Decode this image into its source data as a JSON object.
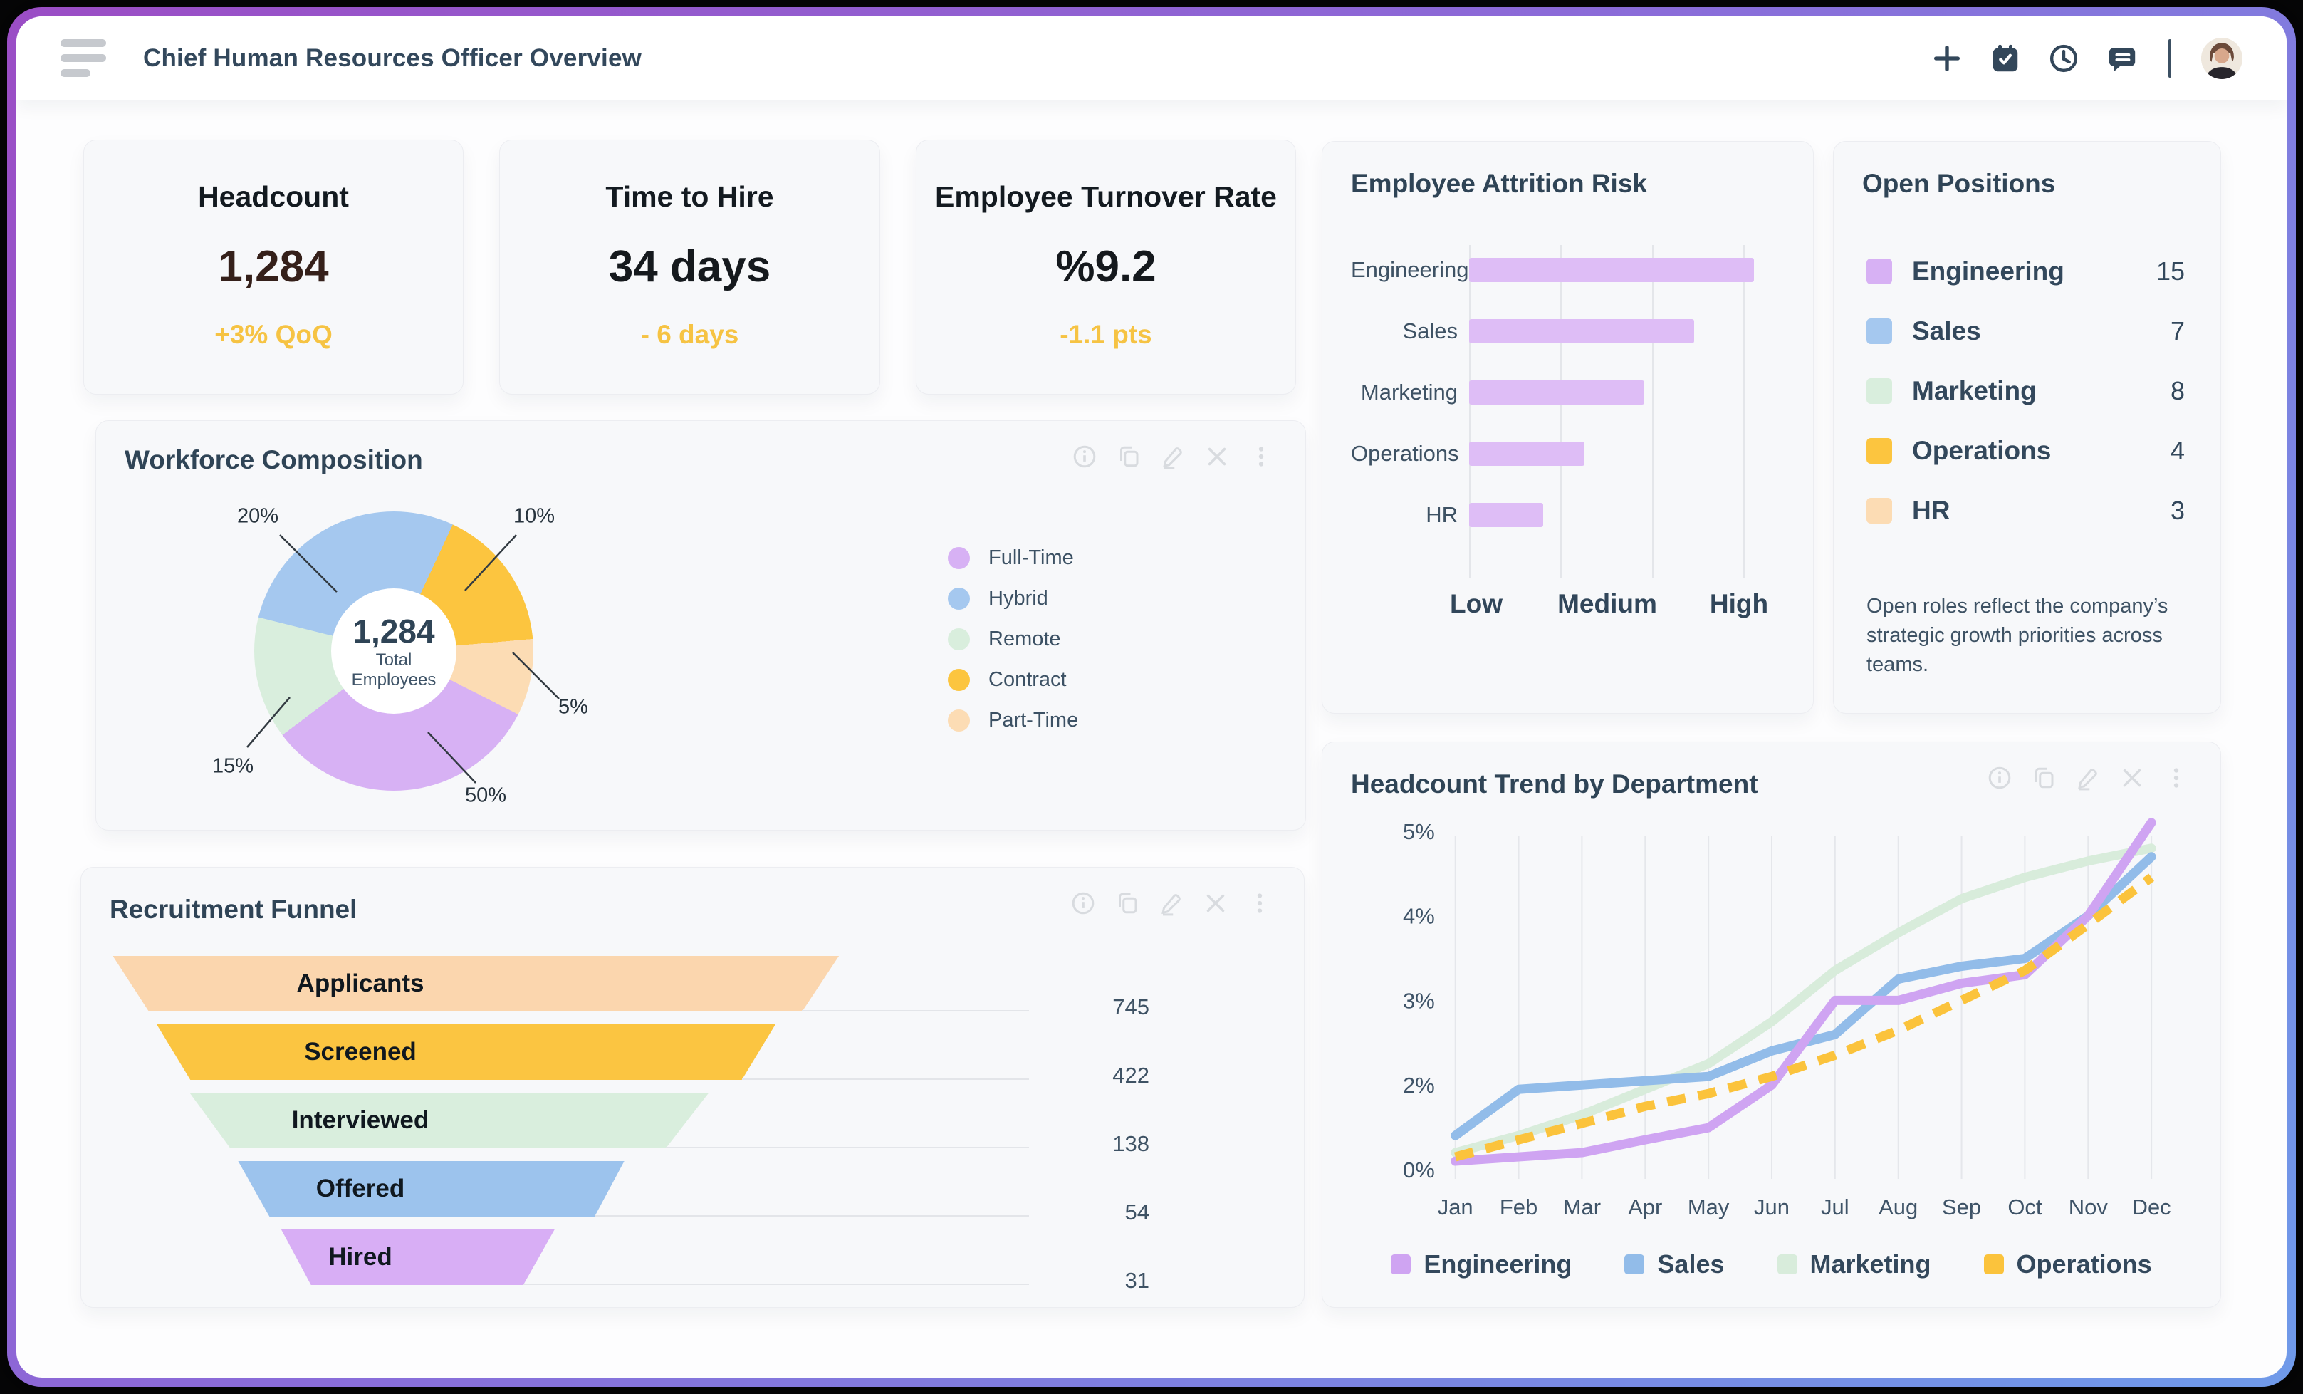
{
  "app": {
    "title": "Chief Human Resources Officer Overview",
    "header_icons": [
      "add",
      "calendar-check",
      "clock",
      "chat"
    ]
  },
  "kpis": [
    {
      "title": "Headcount",
      "value": "1,284",
      "delta": "+3% QoQ",
      "value_color": "#35201a"
    },
    {
      "title": "Time to Hire",
      "value": "34 days",
      "delta": "- 6 days",
      "value_color": "#15191d"
    },
    {
      "title": "Employee Turnover Rate",
      "value": "%9.2",
      "delta": "-1.1 pts",
      "value_color": "#15191d"
    }
  ],
  "open_positions": {
    "title": "Open Positions",
    "items": [
      {
        "label": "Engineering",
        "count": 15,
        "color": "#d7b1f4"
      },
      {
        "label": "Sales",
        "count": 7,
        "color": "#a5c8ef"
      },
      {
        "label": "Marketing",
        "count": 8,
        "color": "#d9eedd"
      },
      {
        "label": "Operations",
        "count": 4,
        "color": "#fcc53f"
      },
      {
        "label": "HR",
        "count": 3,
        "color": "#fcdcb4"
      }
    ],
    "note": "Open roles reflect the company’s strategic growth priorities across teams."
  },
  "chart_data": [
    {
      "id": "workforce_composition",
      "type": "pie",
      "title": "Workforce Composition",
      "labels": [
        "Full-Time",
        "Hybrid",
        "Remote",
        "Contract",
        "Part-Time"
      ],
      "values": [
        50,
        20,
        15,
        10,
        5
      ],
      "value_labels": [
        "50%",
        "20%",
        "15%",
        "10%",
        "5%"
      ],
      "unit": "%",
      "center_total": "1,284",
      "center_sub": [
        "Total",
        "Employees"
      ],
      "colors": {
        "Full-Time": "#d7b1f4",
        "Hybrid": "#a5c8ef",
        "Remote": "#d9eedd",
        "Contract": "#fcc53f",
        "Part-Time": "#fcdcb4"
      },
      "legend_position": "right",
      "draw": {
        "start_deg": 284,
        "arcs": [
          {
            "label": "Hybrid",
            "deg": 101
          },
          {
            "label": "Contract",
            "deg": 60
          },
          {
            "label": "Part-Time",
            "deg": 32
          },
          {
            "label": "Full-Time",
            "deg": 116
          },
          {
            "label": "Remote",
            "deg": 51
          }
        ]
      }
    },
    {
      "id": "employee_attrition_risk",
      "type": "bar",
      "orientation": "horizontal",
      "title": "Employee Attrition Risk",
      "categories": [
        "Engineering",
        "Sales",
        "Marketing",
        "Operations",
        "HR"
      ],
      "values": [
        1.04,
        0.82,
        0.64,
        0.42,
        0.27
      ],
      "value_scale": "fraction of High (Low=0, High=1)",
      "x_axis": [
        "Low",
        "Medium",
        "High"
      ],
      "color": "#debdf6",
      "grid": true
    },
    {
      "id": "recruitment_funnel",
      "type": "bar",
      "subtype": "funnel",
      "title": "Recruitment Funnel",
      "categories": [
        "Applicants",
        "Screened",
        "Interviewed",
        "Offered",
        "Hired"
      ],
      "values": [
        745,
        422,
        138,
        54,
        31
      ],
      "colors": [
        "#fbd6ae",
        "#fbc541",
        "#d9eedd",
        "#9cc3ed",
        "#d8aef5"
      ]
    },
    {
      "id": "headcount_trend",
      "type": "line",
      "title": "Headcount Trend by Department",
      "x": [
        "Jan",
        "Feb",
        "Mar",
        "Apr",
        "May",
        "Jun",
        "Jul",
        "Aug",
        "Sep",
        "Oct",
        "Nov",
        "Dec"
      ],
      "y_ticks_display": [
        "5%",
        "4%",
        "3%",
        "2%",
        "0%"
      ],
      "ylabel": "",
      "xlabel": "",
      "axis_note": "y axis labels skip 1%; ticks evenly spaced",
      "grid": "vertical-only",
      "legend_position": "bottom",
      "series": [
        {
          "name": "Engineering",
          "color": "#cfa4f2",
          "dashed": false,
          "values": [
            0.2,
            0.3,
            0.4,
            0.7,
            1.0,
            2.0,
            3.0,
            3.0,
            3.2,
            3.3,
            4.0,
            5.1
          ]
        },
        {
          "name": "Sales",
          "color": "#92bce9",
          "dashed": false,
          "values": [
            0.8,
            1.9,
            2.0,
            2.05,
            2.1,
            2.4,
            2.6,
            3.25,
            3.4,
            3.5,
            4.0,
            4.7
          ]
        },
        {
          "name": "Marketing",
          "color": "#d8ecdb",
          "dashed": false,
          "values": [
            0.4,
            0.8,
            1.3,
            1.9,
            2.25,
            2.75,
            3.35,
            3.8,
            4.2,
            4.45,
            4.65,
            4.8
          ]
        },
        {
          "name": "Operations",
          "color": "#fbc33c",
          "dashed": true,
          "values": [
            0.3,
            0.7,
            1.1,
            1.5,
            1.8,
            2.1,
            2.35,
            2.65,
            3.0,
            3.35,
            3.9,
            4.45
          ]
        }
      ]
    }
  ],
  "colors": {
    "frame_gradient_start": "#9b4dc5",
    "frame_gradient_end": "#6f9ae9",
    "card_bg": "#f7f8fa",
    "accent_amber": "#f6c343",
    "title_slate": "#2f4456",
    "muted_icon": "#d8dbdf"
  }
}
